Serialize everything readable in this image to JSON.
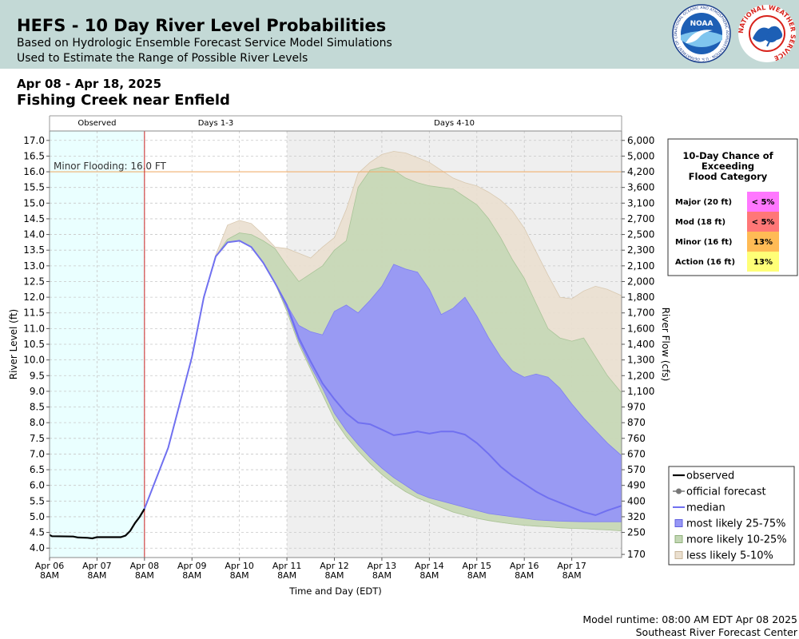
{
  "header": {
    "title": "HEFS - 10 Day River Level Probabilities",
    "subtitle1": "Based on Hydrologic Ensemble Forecast Service Model Simulations",
    "subtitle2": "Used to Estimate the Range of Possible River Levels",
    "noaa_logo_text": "NOAA",
    "noaa_ring_text": "NATIONAL OCEANIC AND ATMOSPHERIC ADMINISTRATION · U.S. DEPARTMENT OF COMMERCE",
    "nws_ring_text": "NATIONAL WEATHER SERVICE"
  },
  "date_range": "Apr 08 - Apr 18, 2025",
  "location": "Fishing Creek near Enfield",
  "footer": {
    "runtime": "Model runtime: 08:00 AM EDT Apr 08 2025",
    "center": "Southeast River Forecast Center"
  },
  "colors": {
    "observed_bg": "#eaffff",
    "days410_bg": "#efefef",
    "less_likely": "#eadfcf",
    "more_likely": "#c3d7b4",
    "most_likely": "#9797f5",
    "median": "#7070f0",
    "minor_line": "#f0b070",
    "now_line": "#cc2222",
    "major": "#ff77ff",
    "moderate": "#ff7777",
    "minor": "#ffbb55",
    "action": "#ffff77"
  },
  "chart_data": {
    "type": "area",
    "xlabel": "Time and Day (EDT)",
    "ylabel": "River Level (ft)",
    "y2label": "River Flow (cfs)",
    "x_ticks": [
      "Apr 06\n8AM",
      "Apr 07\n8AM",
      "Apr 08\n8AM",
      "Apr 09\n8AM",
      "Apr 10\n8AM",
      "Apr 11\n8AM",
      "Apr 12\n8AM",
      "Apr 13\n8AM",
      "Apr 14\n8AM",
      "Apr 15\n8AM",
      "Apr 16\n8AM",
      "Apr 17\n8AM"
    ],
    "x_range_days": [
      0,
      12.05
    ],
    "ylim": [
      3.7,
      17.3
    ],
    "y_ticks": [
      4.0,
      4.5,
      5.0,
      5.5,
      6.0,
      6.5,
      7.0,
      7.5,
      8.0,
      8.5,
      9.0,
      9.5,
      10.0,
      10.5,
      11.0,
      11.5,
      12.0,
      12.5,
      13.0,
      13.5,
      14.0,
      14.5,
      15.0,
      15.5,
      16.0,
      16.5,
      17.0
    ],
    "y2_ticks": [
      {
        "stage": 3.8,
        "label": "170"
      },
      {
        "stage": 4.5,
        "label": "250"
      },
      {
        "stage": 5.0,
        "label": "320"
      },
      {
        "stage": 5.5,
        "label": "400"
      },
      {
        "stage": 6.0,
        "label": "490"
      },
      {
        "stage": 6.5,
        "label": "570"
      },
      {
        "stage": 7.0,
        "label": "670"
      },
      {
        "stage": 7.5,
        "label": "760"
      },
      {
        "stage": 8.0,
        "label": "870"
      },
      {
        "stage": 8.5,
        "label": "970"
      },
      {
        "stage": 9.0,
        "label": "1,100"
      },
      {
        "stage": 9.5,
        "label": "1,200"
      },
      {
        "stage": 10.0,
        "label": "1,300"
      },
      {
        "stage": 10.5,
        "label": "1,400"
      },
      {
        "stage": 11.0,
        "label": "1,600"
      },
      {
        "stage": 11.5,
        "label": "1,700"
      },
      {
        "stage": 12.0,
        "label": "1,800"
      },
      {
        "stage": 12.5,
        "label": "2,000"
      },
      {
        "stage": 13.0,
        "label": "2,100"
      },
      {
        "stage": 13.5,
        "label": "2,300"
      },
      {
        "stage": 14.0,
        "label": "2,500"
      },
      {
        "stage": 14.5,
        "label": "2,700"
      },
      {
        "stage": 15.0,
        "label": "3,100"
      },
      {
        "stage": 15.5,
        "label": "3,600"
      },
      {
        "stage": 16.0,
        "label": "4,200"
      },
      {
        "stage": 16.5,
        "label": "5,000"
      },
      {
        "stage": 17.0,
        "label": "6,000"
      }
    ],
    "regions": [
      {
        "label": "Observed",
        "from": 0,
        "to": 2
      },
      {
        "label": "Days 1-3",
        "from": 2,
        "to": 5
      },
      {
        "label": "Days 4-10",
        "from": 5,
        "to": 12.05
      }
    ],
    "minor_flood_line": {
      "value": 16.0,
      "label": "Minor Flooding: 16.0 FT"
    },
    "observed": {
      "x": [
        0,
        0.05,
        0.5,
        0.6,
        0.8,
        0.9,
        1.0,
        1.5,
        1.6,
        1.7,
        1.8,
        1.9,
        2.0
      ],
      "y": [
        4.42,
        4.38,
        4.37,
        4.34,
        4.33,
        4.31,
        4.35,
        4.35,
        4.4,
        4.55,
        4.8,
        5.0,
        5.25
      ]
    },
    "median": {
      "x": [
        2.0,
        2.5,
        3.0,
        3.25,
        3.5,
        3.75,
        4.0,
        4.25,
        4.5,
        4.75,
        5.0,
        5.25,
        5.5,
        5.75,
        6.0,
        6.25,
        6.5,
        6.75,
        7.0,
        7.25,
        7.5,
        7.75,
        8.0,
        8.25,
        8.5,
        8.75,
        9.0,
        9.25,
        9.5,
        9.75,
        10.0,
        10.25,
        10.5,
        10.75,
        11.0,
        11.25,
        11.5,
        11.75,
        12.05
      ],
      "y": [
        5.25,
        7.2,
        10.1,
        12.0,
        13.3,
        13.75,
        13.8,
        13.6,
        13.1,
        12.45,
        11.75,
        10.7,
        9.95,
        9.25,
        8.75,
        8.3,
        8.0,
        7.95,
        7.78,
        7.6,
        7.65,
        7.72,
        7.65,
        7.72,
        7.72,
        7.62,
        7.35,
        7.0,
        6.6,
        6.3,
        6.05,
        5.8,
        5.6,
        5.45,
        5.3,
        5.15,
        5.05,
        5.2,
        5.35
      ]
    },
    "bands_x": [
      2.0,
      2.5,
      3.0,
      3.25,
      3.5,
      3.75,
      4.0,
      4.25,
      4.5,
      4.75,
      5.0,
      5.25,
      5.5,
      5.75,
      6.0,
      6.25,
      6.5,
      6.75,
      7.0,
      7.25,
      7.5,
      7.75,
      8.0,
      8.25,
      8.5,
      8.75,
      9.0,
      9.25,
      9.5,
      9.75,
      10.0,
      10.25,
      10.5,
      10.75,
      11.0,
      11.25,
      11.5,
      11.75,
      12.05
    ],
    "less_likely_5_10": {
      "upper": [
        5.25,
        7.2,
        10.1,
        12.0,
        13.35,
        14.3,
        14.45,
        14.35,
        14.0,
        13.6,
        13.55,
        13.4,
        13.25,
        13.6,
        13.9,
        14.8,
        15.95,
        16.3,
        16.55,
        16.65,
        16.6,
        16.45,
        16.3,
        16.05,
        15.8,
        15.65,
        15.55,
        15.35,
        15.1,
        14.75,
        14.2,
        13.45,
        12.7,
        12.0,
        11.95,
        12.2,
        12.35,
        12.25,
        12.05
      ],
      "lower": [
        5.25,
        7.2,
        10.1,
        12.0,
        13.3,
        13.75,
        13.8,
        13.6,
        13.1,
        12.45,
        11.55,
        10.5,
        9.7,
        8.9,
        8.1,
        7.55,
        7.1,
        6.7,
        6.35,
        6.05,
        5.8,
        5.6,
        5.45,
        5.3,
        5.15,
        5.05,
        4.95,
        4.88,
        4.82,
        4.77,
        4.73,
        4.7,
        4.68,
        4.65,
        4.63,
        4.62,
        4.6,
        4.58,
        4.55
      ]
    },
    "more_likely_10_25": {
      "upper": [
        5.25,
        7.2,
        10.1,
        12.0,
        13.3,
        13.85,
        14.05,
        14.0,
        13.8,
        13.55,
        13.0,
        12.5,
        12.75,
        13.0,
        13.5,
        13.8,
        15.5,
        16.05,
        16.15,
        16.05,
        15.8,
        15.65,
        15.55,
        15.5,
        15.45,
        15.2,
        14.95,
        14.5,
        13.9,
        13.2,
        12.6,
        11.8,
        11.0,
        10.7,
        10.6,
        10.7,
        10.1,
        9.5,
        8.95
      ]
    },
    "most_likely_25_75": {
      "upper": [
        5.25,
        7.2,
        10.1,
        12.0,
        13.3,
        13.75,
        13.8,
        13.6,
        13.1,
        12.45,
        11.75,
        11.1,
        10.9,
        10.8,
        11.55,
        11.75,
        11.5,
        11.9,
        12.35,
        13.05,
        12.9,
        12.8,
        12.25,
        11.45,
        11.65,
        12.0,
        11.4,
        10.7,
        10.1,
        9.65,
        9.45,
        9.55,
        9.45,
        9.1,
        8.6,
        8.15,
        7.75,
        7.35,
        6.95
      ],
      "lower": [
        5.25,
        7.2,
        10.1,
        12.0,
        13.3,
        13.75,
        13.8,
        13.6,
        13.1,
        12.45,
        11.65,
        10.6,
        9.8,
        9.1,
        8.3,
        7.75,
        7.3,
        6.9,
        6.55,
        6.25,
        6.0,
        5.75,
        5.6,
        5.5,
        5.4,
        5.3,
        5.2,
        5.1,
        5.05,
        5.0,
        4.95,
        4.9,
        4.88,
        4.86,
        4.85,
        4.84,
        4.84,
        4.84,
        4.84
      ]
    },
    "legend": [
      "observed",
      "official forecast",
      "median",
      "most likely 25-75%",
      "more likely 10-25%",
      "less likely 5-10%"
    ],
    "flood_chance_table": {
      "title_lines": [
        "10-Day Chance of",
        "Exceeding",
        "Flood Category"
      ],
      "rows": [
        {
          "category": "Major (20 ft)",
          "chance": "< 5%"
        },
        {
          "category": "Mod (18 ft)",
          "chance": "< 5%"
        },
        {
          "category": "Minor (16 ft)",
          "chance": "13%"
        },
        {
          "category": "Action (16 ft)",
          "chance": "13%"
        }
      ]
    }
  }
}
